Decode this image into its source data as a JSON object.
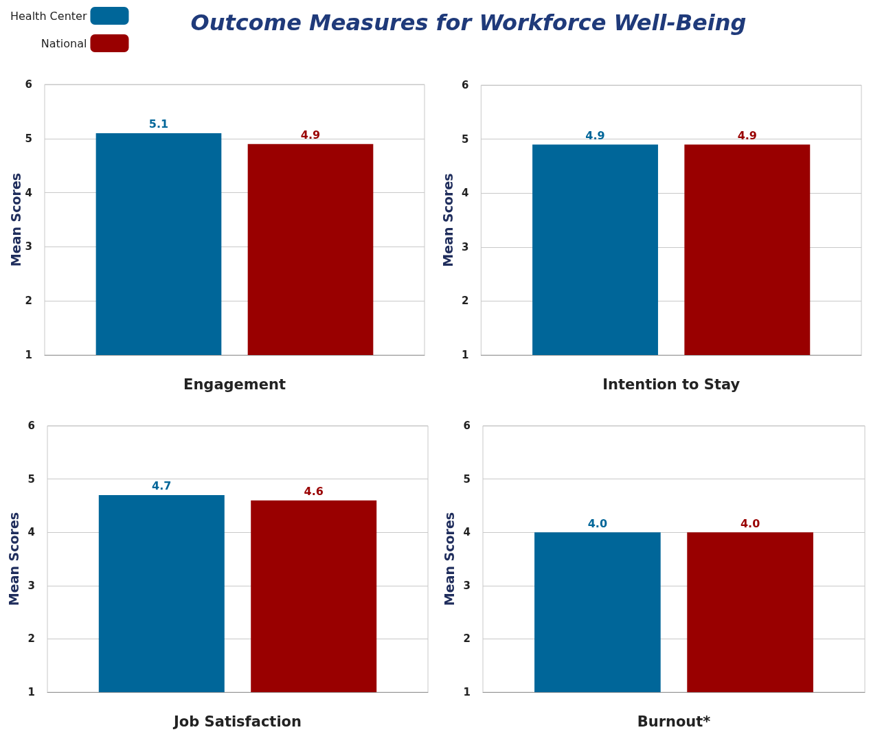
{
  "chart_data": [
    {
      "type": "bar",
      "title": "Outcome Measures for Workforce Well-Being",
      "legend": "top left",
      "categories": [
        null
      ],
      "xlabel": "Engagement",
      "ylabel": "Mean Scores",
      "ylim": [
        1,
        6
      ],
      "yticks": [
        1,
        2,
        3,
        4,
        5,
        6
      ],
      "grid": "y",
      "series": [
        {
          "name": "Health Center",
          "color": "#006699",
          "values": [
            5.1
          ],
          "value_labels": [
            "5.1"
          ]
        },
        {
          "name": "National",
          "color": "#990000",
          "values": [
            4.9
          ],
          "value_labels": [
            "4.9"
          ]
        }
      ]
    },
    {
      "type": "bar",
      "categories": [
        null
      ],
      "xlabel": "Intention to Stay",
      "ylabel": "Mean Scores",
      "ylim": [
        1,
        6
      ],
      "yticks": [
        1,
        2,
        3,
        4,
        5,
        6
      ],
      "grid": "y",
      "series": [
        {
          "color": "#006699",
          "values": [
            4.9
          ],
          "value_labels": [
            "4.9"
          ]
        },
        {
          "color": "#990000",
          "values": [
            4.9
          ],
          "value_labels": [
            "4.9"
          ]
        }
      ]
    },
    {
      "type": "bar",
      "categories": [
        null
      ],
      "xlabel": "Job Satisfaction",
      "ylabel": "Mean Scores",
      "ylim": [
        1,
        6
      ],
      "yticks": [
        1,
        2,
        3,
        4,
        5,
        6
      ],
      "grid": "y",
      "series": [
        {
          "color": "#006699",
          "values": [
            4.7
          ],
          "value_labels": [
            "4.7"
          ]
        },
        {
          "color": "#990000",
          "values": [
            4.6
          ],
          "value_labels": [
            "4.6"
          ]
        }
      ]
    },
    {
      "type": "bar",
      "categories": [
        null
      ],
      "xlabel": "Burnout*",
      "ylabel": "Mean Scores",
      "ylim": [
        1,
        6
      ],
      "yticks": [
        1,
        2,
        3,
        4,
        5,
        6
      ],
      "grid": "y",
      "series": [
        {
          "color": "#006699",
          "values": [
            4
          ],
          "value_labels": [
            "4.0"
          ]
        },
        {
          "color": "#990000",
          "values": [
            4
          ],
          "value_labels": [
            "4.0"
          ]
        }
      ]
    }
  ]
}
